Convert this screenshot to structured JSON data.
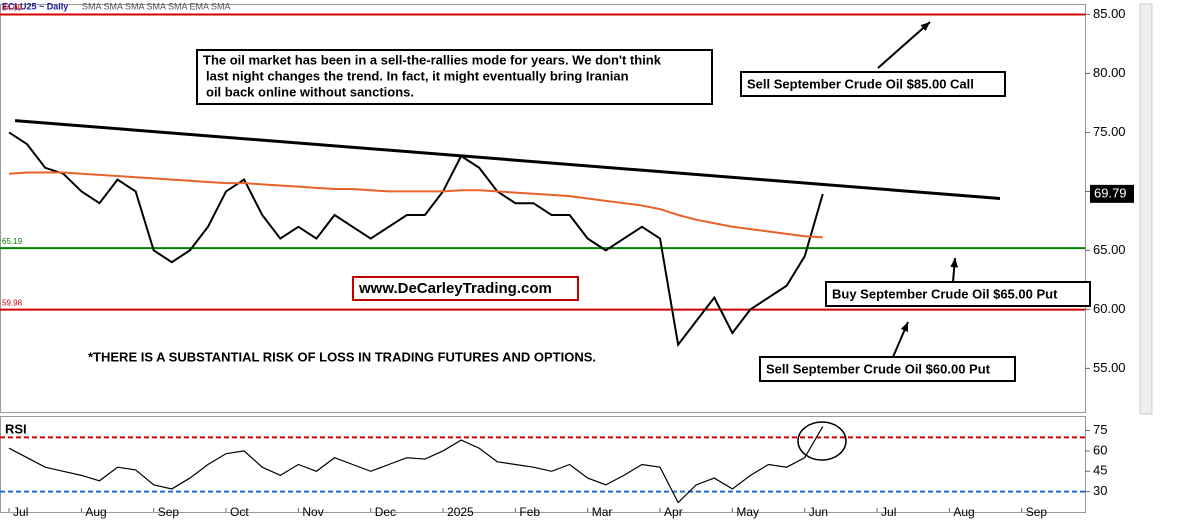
{
  "header": {
    "symbol": "ECLU25 ~ Daily",
    "studies": "SMA SMA SMA SMA SMA EMA SMA"
  },
  "chart_data": [
    {
      "type": "line",
      "categories": [
        "Jul",
        null,
        null,
        null,
        "Aug",
        null,
        null,
        null,
        "Sep",
        null,
        null,
        null,
        "Oct",
        null,
        null,
        null,
        "Nov",
        null,
        null,
        null,
        "Dec",
        null,
        null,
        null,
        "2025",
        null,
        null,
        null,
        "Feb",
        null,
        null,
        null,
        "Mar",
        null,
        null,
        null,
        "Apr",
        null,
        null,
        null,
        "May",
        null,
        null,
        null,
        "Jun",
        null,
        null,
        null,
        "Jul",
        null,
        null,
        null,
        "Aug",
        null,
        null,
        null,
        "Sep",
        null,
        null,
        null
      ],
      "series": [
        {
          "color": "#000000",
          "values": [
            75,
            74,
            72,
            71.5,
            70,
            69,
            71,
            70,
            65,
            64,
            65,
            67,
            70,
            71,
            68,
            66,
            67,
            66,
            68,
            67,
            66,
            67,
            68,
            68,
            70,
            73,
            72,
            70,
            69,
            69,
            68,
            68,
            66,
            65,
            66,
            67,
            66,
            57,
            59,
            61,
            58,
            60,
            61,
            62,
            64.5,
            69.79,
            null,
            null,
            null,
            null,
            null,
            null,
            null,
            null,
            null,
            null,
            null,
            null,
            null,
            null
          ]
        },
        {
          "color": "#e8622c",
          "values": [
            71.5,
            71.6,
            71.6,
            71.6,
            71.5,
            71.4,
            71.3,
            71.2,
            71.1,
            71,
            70.9,
            70.8,
            70.7,
            70.7,
            70.6,
            70.5,
            70.4,
            70.3,
            70.2,
            70.2,
            70.1,
            70,
            70,
            70,
            70,
            70.1,
            70.1,
            70,
            69.9,
            69.8,
            69.7,
            69.6,
            69.4,
            69.2,
            69,
            68.8,
            68.5,
            68,
            67.6,
            67.3,
            67,
            66.8,
            66.6,
            66.4,
            66.2,
            66.1,
            null,
            null,
            null,
            null,
            null,
            null,
            null,
            null,
            null,
            null,
            null,
            null,
            null,
            null
          ]
        }
      ],
      "ylim": [
        51.3,
        85.8
      ],
      "yticks": [
        {
          "value": 55,
          "label": "55.00"
        },
        {
          "value": 60,
          "label": "60.00"
        },
        {
          "value": 65,
          "label": "65.00"
        },
        {
          "value": 70,
          "label": "70.00"
        },
        {
          "value": 75,
          "label": "75.00"
        },
        {
          "value": 80,
          "label": "80.00"
        },
        {
          "value": 85,
          "label": "85.00"
        }
      ],
      "levels": [
        {
          "value": 84.99,
          "color": "#d40000"
        },
        {
          "value": 65.19,
          "color": "#008000"
        },
        {
          "value": 59.98,
          "color": "#d40000"
        }
      ],
      "trendline": {
        "start": 76,
        "end": 69.4,
        "color": "#000000"
      },
      "annotations": {
        "comment": [
          "The oil market has been in a sell-the-rallies mode for years. We don't think",
          "last night changes the trend. In fact, it might eventually bring Iranian",
          "oil back online without sanctions."
        ],
        "call": "Sell September Crude Oil $85.00 Call",
        "put65": "Buy September Crude Oil $65.00 Put",
        "put60": "Sell September Crude Oil $60.00 Put",
        "site": "www.DeCarleyTrading.com",
        "risk": "*THERE IS A SUBSTANTIAL RISK OF LOSS IN TRADING FUTURES AND OPTIONS."
      }
    },
    {
      "type": "line",
      "title": "RSI",
      "series": [
        {
          "color": "#000000",
          "values": [
            62,
            55,
            48,
            45,
            42,
            38,
            48,
            46,
            35,
            32,
            40,
            50,
            58,
            60,
            48,
            42,
            50,
            45,
            55,
            50,
            45,
            50,
            55,
            54,
            60,
            68,
            62,
            52,
            50,
            48,
            45,
            50,
            40,
            35,
            42,
            50,
            48,
            22,
            35,
            40,
            32,
            42,
            50,
            48,
            55,
            78,
            null,
            null,
            null,
            null,
            null,
            null,
            null,
            null,
            null,
            null,
            null,
            null,
            null,
            null
          ]
        }
      ],
      "ylim": [
        15,
        85
      ],
      "yticks": [
        30,
        45,
        60,
        75
      ],
      "levels": [
        {
          "value": 70,
          "color": "#d40000"
        },
        {
          "value": 30,
          "color": "#1e6fd0"
        }
      ]
    }
  ]
}
